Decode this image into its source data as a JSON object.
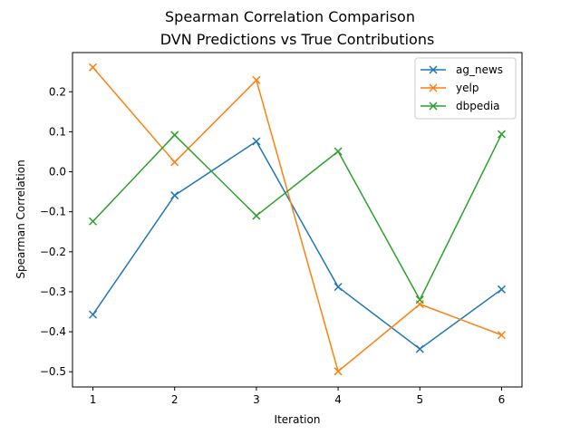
{
  "chart_data": {
    "type": "line",
    "suptitle": "Spearman Correlation Comparison",
    "title": "DVN Predictions vs True Contributions",
    "xlabel": "Iteration",
    "ylabel": "Spearman Correlation",
    "x": [
      1,
      2,
      3,
      4,
      5,
      6
    ],
    "xticks": [
      "1",
      "2",
      "3",
      "4",
      "5",
      "6"
    ],
    "yticks": [
      "0.2",
      "0.1",
      "0.0",
      "−0.1",
      "−0.2",
      "−0.3",
      "−0.4",
      "−0.5"
    ],
    "xlim": [
      0.75,
      6.25
    ],
    "ylim": [
      -0.538,
      0.298
    ],
    "grid": false,
    "legend_position": "top-right",
    "marker": "x",
    "series": [
      {
        "name": "ag_news",
        "color": "#1f77b4",
        "values": [
          -0.357,
          -0.059,
          0.076,
          -0.288,
          -0.443,
          -0.294
        ]
      },
      {
        "name": "yelp",
        "color": "#ff7f0e",
        "values": [
          0.261,
          0.024,
          0.229,
          -0.499,
          -0.331,
          -0.408
        ]
      },
      {
        "name": "dbpedia",
        "color": "#2ca02c",
        "values": [
          -0.124,
          0.092,
          -0.11,
          0.051,
          -0.32,
          0.094
        ]
      }
    ]
  }
}
